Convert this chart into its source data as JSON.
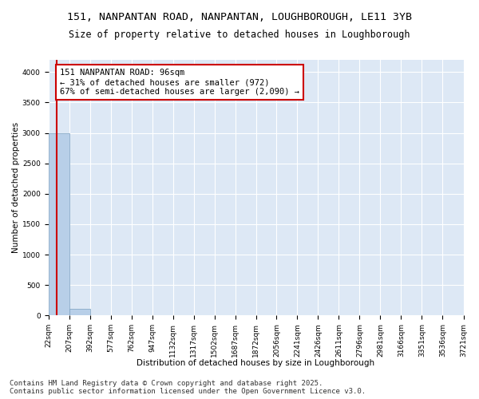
{
  "title_line1": "151, NANPANTAN ROAD, NANPANTAN, LOUGHBOROUGH, LE11 3YB",
  "title_line2": "Size of property relative to detached houses in Loughborough",
  "xlabel": "Distribution of detached houses by size in Loughborough",
  "ylabel": "Number of detached properties",
  "bin_edges": [
    22,
    207,
    392,
    577,
    762,
    947,
    1132,
    1317,
    1502,
    1687,
    1872,
    2056,
    2241,
    2426,
    2611,
    2796,
    2981,
    3166,
    3351,
    3536,
    3721
  ],
  "bar_heights": [
    3000,
    110,
    0,
    0,
    0,
    0,
    0,
    0,
    0,
    0,
    0,
    0,
    0,
    0,
    0,
    0,
    0,
    0,
    0,
    0
  ],
  "bar_color": "#b8cfe8",
  "bar_edge_color": "#7aA0c0",
  "property_size": 96,
  "property_line_color": "#cc0000",
  "annotation_text": "151 NANPANTAN ROAD: 96sqm\n← 31% of detached houses are smaller (972)\n67% of semi-detached houses are larger (2,090) →",
  "annotation_box_color": "#ffffff",
  "annotation_box_edge_color": "#cc0000",
  "ylim": [
    0,
    4200
  ],
  "yticks": [
    0,
    500,
    1000,
    1500,
    2000,
    2500,
    3000,
    3500,
    4000
  ],
  "background_color": "#dde8f5",
  "footer_line1": "Contains HM Land Registry data © Crown copyright and database right 2025.",
  "footer_line2": "Contains public sector information licensed under the Open Government Licence v3.0.",
  "title_fontsize": 9.5,
  "subtitle_fontsize": 8.5,
  "axis_label_fontsize": 7.5,
  "tick_fontsize": 6.5,
  "annotation_fontsize": 7.5,
  "footer_fontsize": 6.5
}
